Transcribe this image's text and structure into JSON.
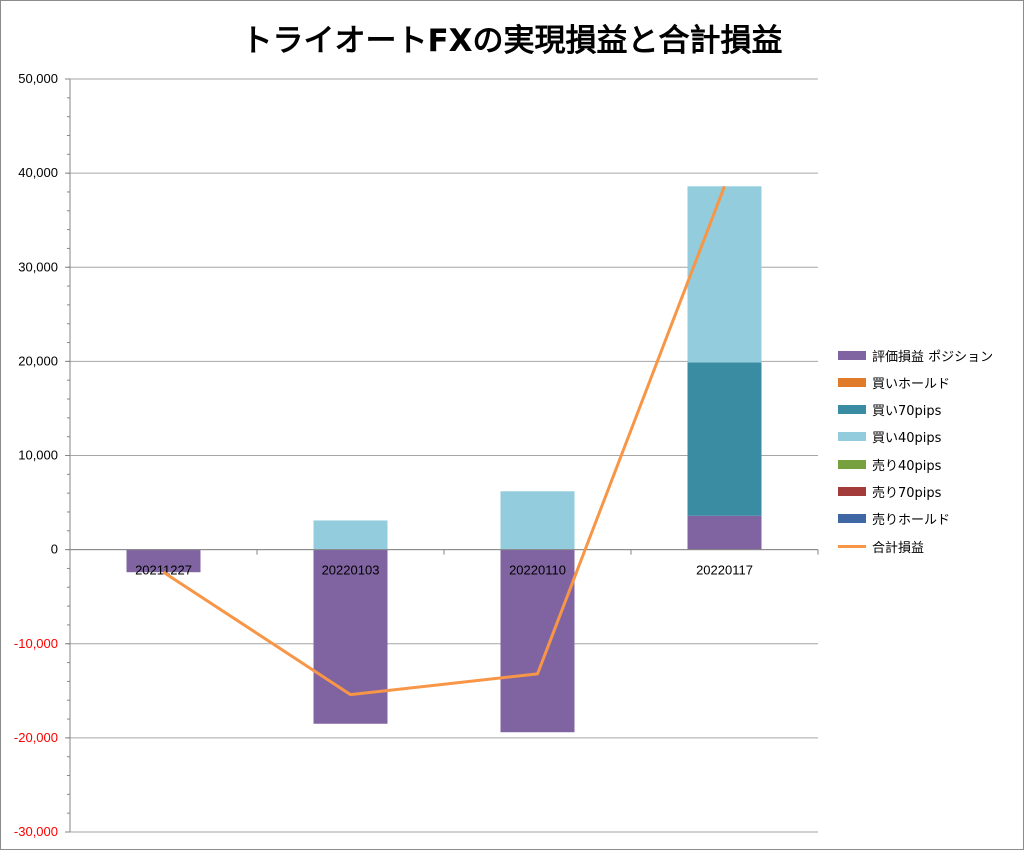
{
  "chart_data": {
    "type": "bar",
    "stacked": true,
    "title": "トライオートFXの実現損益と合計損益",
    "categories": [
      "20211227",
      "20220103",
      "20220110",
      "20220117"
    ],
    "yaxis": {
      "min": -30000,
      "max": 50000,
      "step": 10000,
      "tick_labels": [
        "-30,000",
        "-20,000",
        "-10,000",
        "0",
        "10,000",
        "20,000",
        "30,000",
        "40,000",
        "50,000"
      ],
      "negative_color": "#ff0000",
      "positive_color": "#000000"
    },
    "grid": true,
    "legend_position": "right",
    "series": [
      {
        "name": "評価損益 ポジション",
        "color": "#8064a2",
        "values": [
          -2400,
          -18500,
          -19400,
          3600
        ]
      },
      {
        "name": "買いホールド",
        "color": "#e07b2a",
        "values": [
          0,
          0,
          0,
          0
        ]
      },
      {
        "name": "買い70pips",
        "color": "#3a8ca3",
        "values": [
          0,
          0,
          0,
          16300
        ]
      },
      {
        "name": "買い40pips",
        "color": "#93cddd",
        "values": [
          0,
          3100,
          6200,
          18700
        ]
      },
      {
        "name": "売り40pips",
        "color": "#77a03e",
        "values": [
          0,
          0,
          0,
          0
        ]
      },
      {
        "name": "売り70pips",
        "color": "#a33b3a",
        "values": [
          0,
          0,
          0,
          0
        ]
      },
      {
        "name": "売りホールド",
        "color": "#3e67a3",
        "values": [
          0,
          0,
          0,
          0
        ]
      }
    ],
    "line_series": {
      "name": "合計損益",
      "color": "#f79646",
      "values": [
        -2400,
        -15400,
        -13200,
        38600
      ]
    }
  }
}
